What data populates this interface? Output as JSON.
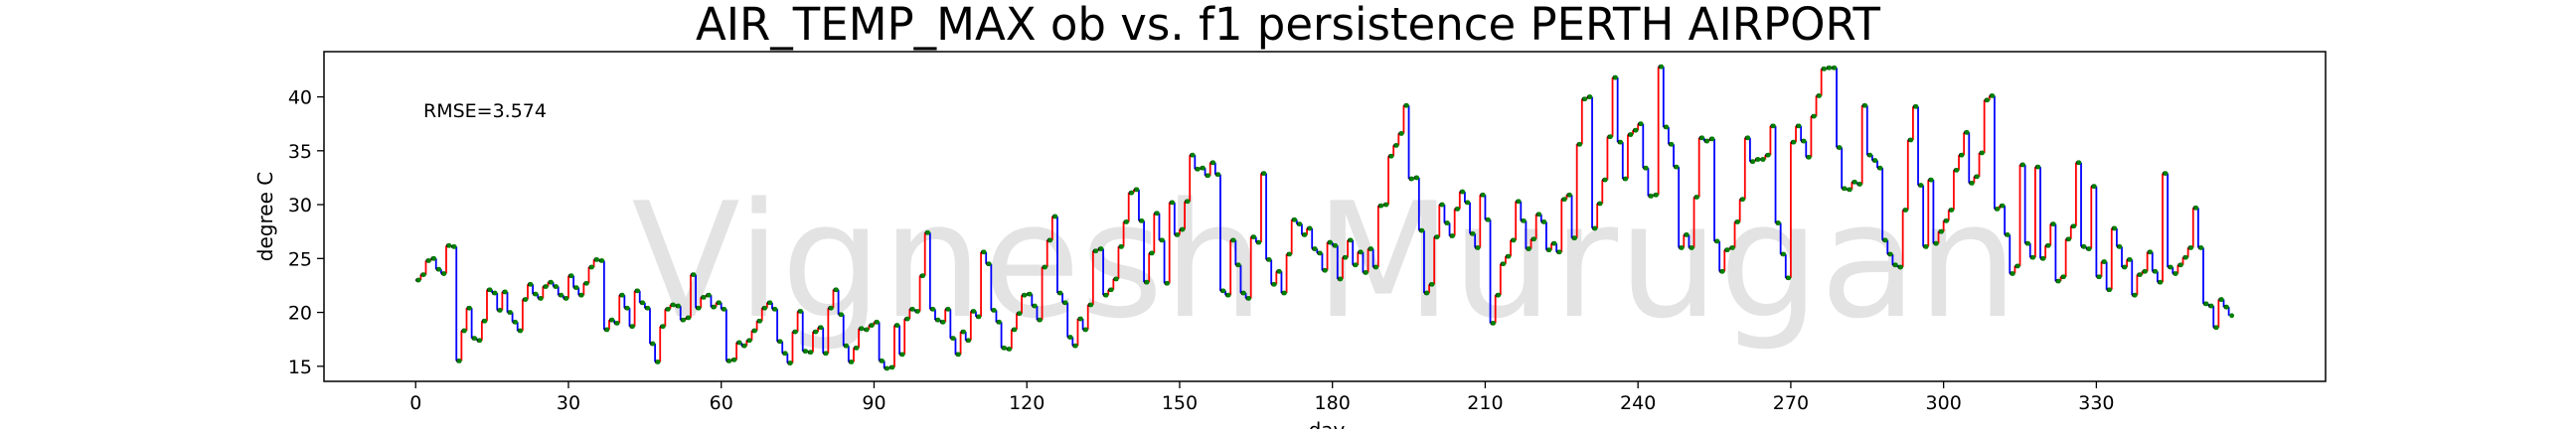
{
  "chart_data": {
    "type": "line",
    "title": "AIR_TEMP_MAX  ob vs. f1  persistence  PERTH AIRPORT",
    "xlabel": "day",
    "ylabel": "degree C",
    "annotation": "RMSE=3.574",
    "watermark": "Vignesh Murugan",
    "xlim": [
      -18,
      375
    ],
    "ylim": [
      13.6,
      44.2
    ],
    "xticks": [
      0,
      30,
      60,
      90,
      120,
      150,
      180,
      210,
      240,
      270,
      300,
      330
    ],
    "yticks": [
      15,
      20,
      25,
      30,
      35,
      40
    ],
    "grid": false,
    "colors": {
      "step_up": "#ff0000",
      "step_down": "#0000ff",
      "observation": "#008000",
      "forecast": "#000000",
      "watermark": "#d0d0d0"
    },
    "series": [
      {
        "values": [
          23.0,
          23.5,
          24.8,
          25.0,
          24.0,
          23.6,
          26.2,
          26.1,
          15.5,
          18.3,
          20.4,
          17.6,
          17.4,
          19.2,
          22.1,
          21.8,
          20.2,
          21.9,
          20.0,
          19.1,
          18.3,
          21.2,
          22.6,
          21.7,
          21.3,
          22.4,
          22.8,
          22.4,
          21.6,
          21.3,
          23.4,
          22.3,
          21.6,
          22.7,
          24.2,
          24.9,
          24.8,
          18.4,
          19.3,
          19.0,
          21.6,
          20.4,
          18.7,
          22.0,
          20.9,
          20.4,
          17.1,
          15.4,
          18.7,
          20.3,
          20.7,
          20.6,
          19.3,
          19.5,
          23.5,
          20.4,
          21.4,
          21.6,
          20.5,
          20.9,
          20.3,
          15.5,
          15.6,
          17.2,
          16.9,
          17.4,
          18.3,
          19.2,
          20.4,
          20.9,
          20.3,
          17.3,
          16.2,
          15.3,
          18.2,
          20.1,
          16.4,
          16.3,
          18.2,
          18.6,
          16.2,
          20.4,
          22.1,
          19.8,
          16.9,
          15.4,
          16.7,
          18.5,
          18.4,
          18.8,
          19.1,
          15.5,
          14.8,
          14.9,
          18.8,
          16.1,
          19.4,
          20.3,
          20.1,
          23.4,
          27.4,
          20.3,
          19.3,
          19.1,
          20.3,
          17.6,
          16.1,
          18.2,
          17.4,
          20.1,
          19.6,
          25.6,
          24.5,
          20.2,
          19.1,
          16.7,
          16.6,
          18.4,
          19.9,
          21.6,
          21.7,
          20.6,
          19.3,
          24.2,
          26.7,
          28.9,
          21.8,
          20.9,
          17.7,
          16.9,
          19.4,
          18.4,
          20.7,
          25.7,
          25.9,
          21.6,
          22.1,
          23.1,
          26.1,
          28.4,
          31.1,
          31.4,
          28.5,
          22.8,
          25.5,
          29.2,
          26.7,
          22.7,
          30.2,
          27.2,
          27.7,
          30.3,
          34.6,
          33.3,
          33.4,
          32.7,
          33.9,
          32.8,
          22.0,
          21.6,
          26.7,
          24.4,
          21.8,
          21.3,
          27.0,
          26.5,
          32.9,
          24.9,
          22.6,
          23.8,
          21.8,
          25.4,
          28.6,
          28.2,
          27.2,
          27.8,
          25.9,
          25.5,
          23.9,
          26.5,
          26.2,
          23.1,
          25.1,
          26.7,
          24.4,
          25.6,
          23.7,
          25.9,
          24.2,
          29.9,
          30.0,
          34.5,
          35.5,
          36.6,
          39.2,
          32.4,
          32.5,
          27.6,
          21.8,
          22.6,
          27.0,
          30.0,
          28.3,
          27.1,
          29.6,
          31.2,
          30.2,
          27.3,
          26.0,
          30.9,
          28.6,
          19.0,
          21.6,
          24.5,
          25.2,
          26.7,
          30.3,
          28.5,
          25.9,
          26.8,
          29.1,
          28.4,
          25.8,
          26.4,
          25.6,
          30.5,
          30.9,
          26.9,
          35.6,
          39.8,
          40.0,
          27.8,
          30.1,
          32.3,
          36.3,
          41.8,
          35.8,
          32.4,
          36.5,
          36.9,
          37.5,
          33.4,
          30.8,
          30.9,
          42.8,
          37.2,
          35.6,
          33.5,
          26.0,
          27.2,
          26.0,
          30.7,
          36.2,
          35.9,
          36.1,
          26.6,
          23.8,
          25.8,
          26.0,
          28.4,
          30.5,
          36.2,
          34.0,
          34.2,
          34.2,
          34.6,
          37.3,
          28.3,
          25.4,
          23.2,
          35.8,
          37.3,
          35.9,
          34.4,
          38.2,
          40.1,
          42.6,
          42.7,
          42.7,
          35.3,
          31.5,
          31.4,
          32.1,
          31.9,
          39.2,
          34.6,
          34.1,
          33.4,
          26.7,
          25.4,
          24.4,
          24.2,
          29.5,
          36.0,
          39.1,
          31.8,
          26.1,
          32.3,
          26.4,
          27.5,
          28.5,
          29.5,
          33.2,
          34.6,
          36.7,
          32.0,
          32.6,
          34.8,
          39.7,
          40.1,
          29.6,
          29.9,
          27.2,
          23.6,
          24.3,
          33.7,
          26.4,
          25.1,
          33.5,
          25.0,
          26.2,
          28.2,
          22.9,
          23.3,
          26.8,
          28.0,
          33.9,
          26.1,
          25.9,
          31.7,
          23.3,
          24.7,
          22.1,
          27.8,
          26.1,
          24.2,
          24.9,
          21.6,
          23.5,
          23.8,
          25.6,
          23.8,
          22.8,
          32.9,
          24.2,
          23.6,
          24.4,
          25.1,
          26.0,
          29.7,
          26.0,
          20.8,
          20.6,
          18.6,
          21.2,
          20.5,
          19.7
        ]
      }
    ]
  }
}
